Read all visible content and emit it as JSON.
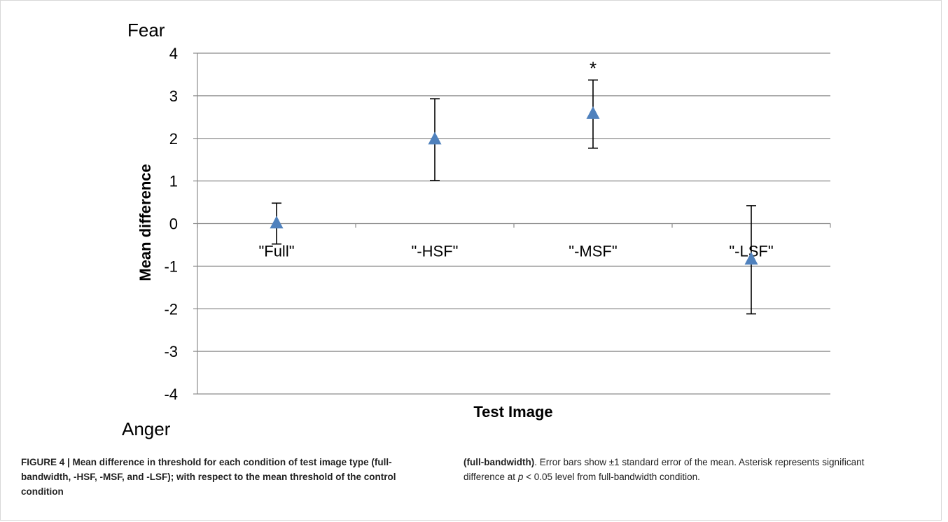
{
  "chart_data": {
    "type": "scatter",
    "title": "",
    "xlabel": "Test Image",
    "ylabel": "Mean difference",
    "ylim": [
      -4,
      4
    ],
    "yticks": [
      4,
      3,
      2,
      1,
      0,
      -1,
      -2,
      -3,
      -4
    ],
    "categories": [
      "\"Full\"",
      "\"-HSF\"",
      "\"-MSF\"",
      "\"-LSF\""
    ],
    "series": [
      {
        "values": [
          0.0,
          1.97,
          2.57,
          -0.85
        ],
        "error": [
          0.48,
          0.96,
          0.8,
          1.27
        ],
        "color": "#4f81bd",
        "marker": "triangle"
      }
    ],
    "annotations": {
      "top_label": "Fear",
      "bottom_label": "Anger",
      "significance": [
        {
          "category": "\"-MSF\"",
          "symbol": "*"
        }
      ]
    },
    "grid": true
  },
  "caption": {
    "left": "FIGURE 4 | Mean difference in threshold for each condition of test image type (full-bandwidth, -HSF, -MSF, and -LSF); with respect to the mean threshold of the control condition",
    "right_bold": "(full-bandwidth)",
    "right_1": ". Error bars show ±1 standard error of the mean. Asterisk represents significant difference at ",
    "right_p": "p",
    "right_2": " < 0.05 level from full-bandwidth condition."
  }
}
